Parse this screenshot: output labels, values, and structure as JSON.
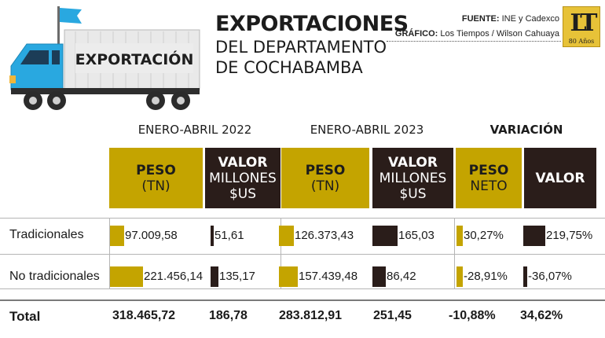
{
  "header": {
    "truck_label": "EXPORTACIÓN",
    "title_main": "EXPORTACIONES",
    "title_sub_1": "DEL DEPARTAMENTO",
    "title_sub_2": "DE COCHABAMBA",
    "source_label": "FUENTE:",
    "source_value": "INE y Cadexco",
    "graphic_label": "GRÁFICO:",
    "graphic_value": "Los Tiempos / Wilson Cahuaya",
    "logo_text": "LT",
    "logo_anniversary": "80 Años"
  },
  "colors": {
    "gold": "#c4a400",
    "dark": "#2a1d1a",
    "truck_blue": "#29a8e0"
  },
  "chart_data": {
    "type": "table",
    "periods": [
      "ENERO-ABRIL 2022",
      "ENERO-ABRIL 2023",
      "VARIACIÓN"
    ],
    "columns": [
      {
        "line1": "PESO",
        "line2": "(TN)"
      },
      {
        "line1": "VALOR",
        "line2": "MILLONES",
        "line3": "$US"
      },
      {
        "line1": "PESO",
        "line2": "(TN)"
      },
      {
        "line1": "VALOR",
        "line2": "MILLONES",
        "line3": "$US"
      },
      {
        "line1": "PESO",
        "line2": "NETO"
      },
      {
        "line1": "VALOR"
      }
    ],
    "rows": [
      {
        "label": "Tradicionales",
        "values": [
          97009.58,
          51.61,
          126373.43,
          165.03,
          30.27,
          219.75
        ],
        "display": [
          "97.009,58",
          "51,61",
          "126.373,43",
          "165,03",
          "30,27%",
          "219,75%"
        ]
      },
      {
        "label": "No tradicionales",
        "values": [
          221456.14,
          135.17,
          157439.48,
          86.42,
          -28.91,
          -36.07
        ],
        "display": [
          "221.456,14",
          "135,17",
          "157.439,48",
          "86,42",
          "-28,91%",
          "-36,07%"
        ]
      }
    ],
    "total": {
      "label": "Total",
      "display": [
        "318.465,72",
        "186,78",
        "283.812,91",
        "251,45",
        "-10,88%",
        "34,62%"
      ]
    }
  }
}
